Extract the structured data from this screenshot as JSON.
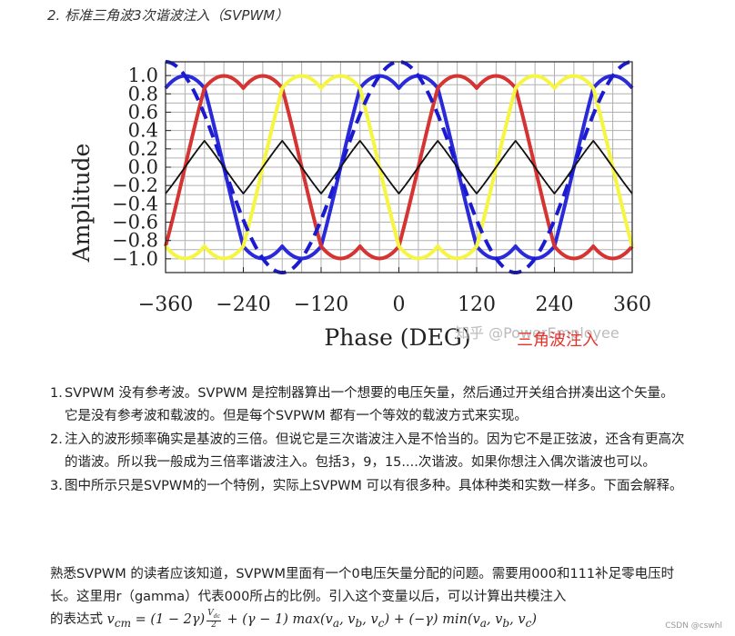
{
  "doc": {
    "heading": "2. 标准三角波3次谐波注入（SVPWM）",
    "items": [
      {
        "num": "1.",
        "text": "SVPWM 没有参考波。SVPWM 是控制器算出一个想要的电压矢量，然后通过开关组合拼凑出这个矢量。它是没有参考波和载波的。但是每个SVPWM 都有一个等效的载波方式来实现。"
      },
      {
        "num": "2.",
        "text": "注入的波形频率确实是基波的三倍。但说它是三次谐波注入是不恰当的。因为它不是正弦波，还含有更高次的谐波。所以我一般成为三倍率谐波注入。包括3，9，15....次谐波。如果你想注入偶次谐波也可以。"
      },
      {
        "num": "3.",
        "text": "图中所示只是SVPWM的一个特例，实际上SVPWM 可以有很多种。具体种类和实数一样多。下面会解释。"
      }
    ],
    "para_line1": "熟悉SVPWM 的读者应该知道，SVPWM里面有一个0电压矢量分配的问题。需要用000和111补足零电压时长。这里用r（gamma）代表000所占的比例。引入这个变量以后，可以计算出共模注入",
    "para_line2_prefix": "的表达式",
    "formula": {
      "lhs": "v",
      "lhs_sub": "cm",
      "part1": " = (1 − 2γ)",
      "frac_top": "V",
      "frac_top_sub": "dc",
      "frac_bottom": "2",
      "part2": " + (γ − 1) max(v",
      "part3": ", v",
      "part4": ", v",
      "part5": ") + (−γ) min(v",
      "part6": ", v",
      "part7": ", v",
      "part8": ")",
      "sub_a": "a",
      "sub_b": "b",
      "sub_c": "c"
    },
    "credit": "CSDN @cswhl"
  },
  "chart_data": {
    "type": "line",
    "xlabel": "Phase (DEG)",
    "ylabel": "Amplitude",
    "xlim": [
      -360,
      360
    ],
    "ylim": [
      -1.15,
      1.15
    ],
    "xticks": [
      -360,
      -240,
      -120,
      0,
      120,
      240,
      360
    ],
    "yticks": [
      1.0,
      0.8,
      0.6,
      0.4,
      0.2,
      0.0,
      -0.2,
      -0.4,
      -0.6,
      -0.8,
      -1.0
    ],
    "grid": true,
    "watermark": "知乎 @PowerEmployee",
    "overlay_label": "三角波注入",
    "series": [
      {
        "color": "#2a2ad8",
        "style": "solid",
        "kind": "phase_a_injected"
      },
      {
        "color": "#d63333",
        "style": "solid",
        "kind": "phase_b_injected"
      },
      {
        "color": "#f5f542",
        "style": "solid",
        "kind": "phase_c_injected"
      },
      {
        "color": "#1a1ad0",
        "style": "dashed",
        "kind": "sine_a"
      },
      {
        "color": "#111111",
        "style": "solid",
        "kind": "triangle_injection"
      }
    ]
  }
}
